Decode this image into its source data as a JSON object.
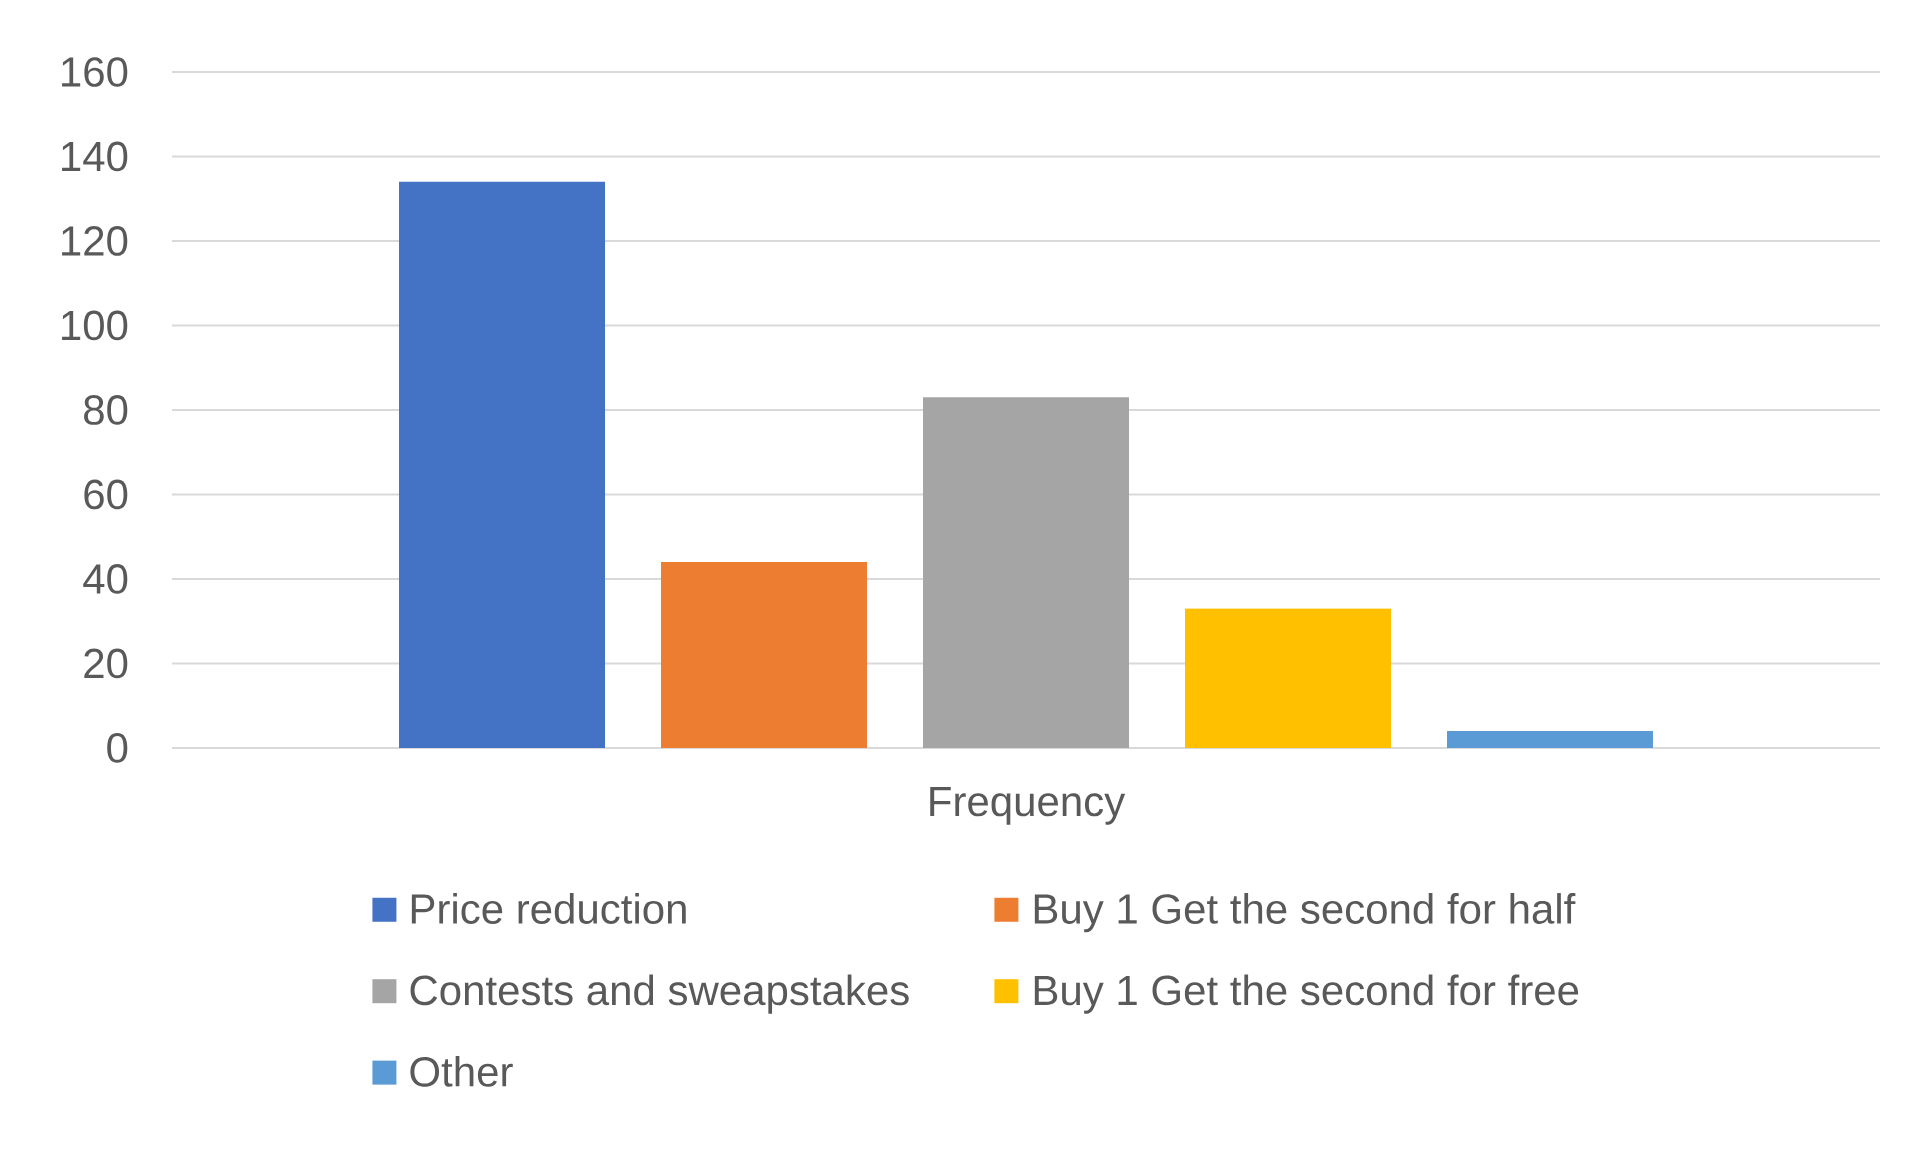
{
  "chart_data": {
    "type": "bar",
    "categories": [
      "Frequency"
    ],
    "series": [
      {
        "name": "Price reduction",
        "color": "#4472c4",
        "values": [
          134
        ]
      },
      {
        "name": "Buy 1 Get the second for half",
        "color": "#ed7d31",
        "values": [
          44
        ]
      },
      {
        "name": "Contests and sweapstakes",
        "color": "#a5a5a5",
        "values": [
          83
        ]
      },
      {
        "name": "Buy 1 Get the second for free",
        "color": "#ffc000",
        "values": [
          33
        ]
      },
      {
        "name": "Other",
        "color": "#5b9bd5",
        "values": [
          4
        ]
      }
    ],
    "ylim": [
      0,
      160
    ],
    "yticks": [
      0,
      20,
      40,
      60,
      80,
      100,
      120,
      140,
      160
    ],
    "grid": "y",
    "legend": "bottom"
  }
}
